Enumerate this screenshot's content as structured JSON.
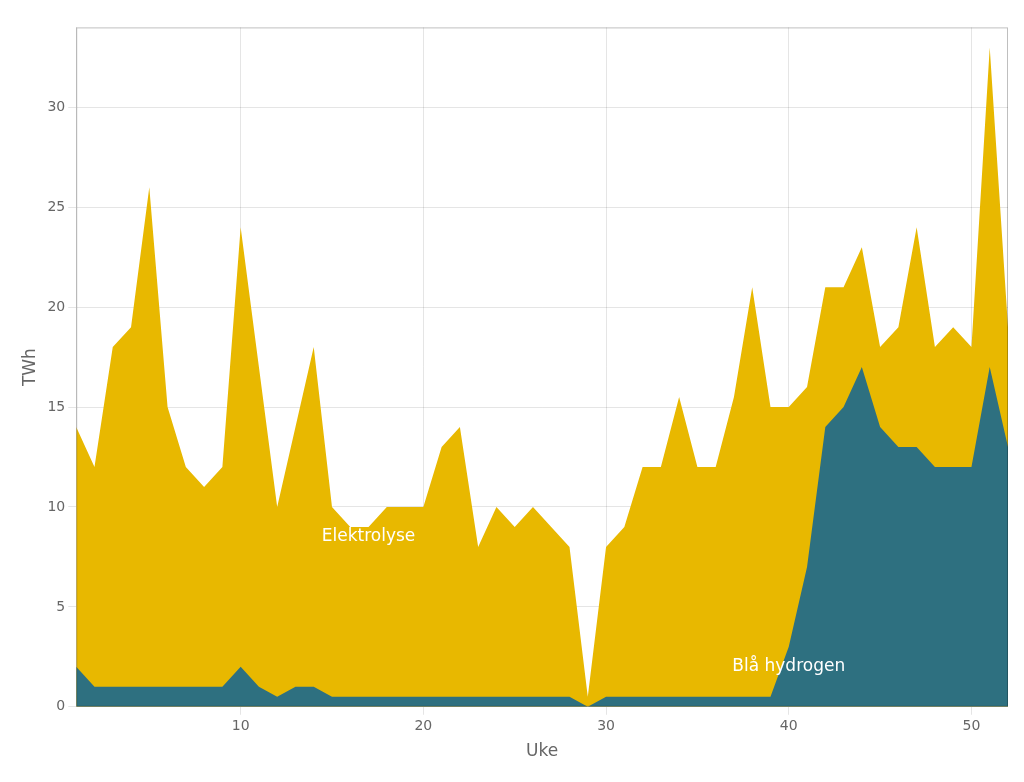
{
  "chart_data": {
    "type": "area",
    "xlabel": "Uke",
    "ylabel": "TWh",
    "x": [
      1,
      2,
      3,
      4,
      5,
      6,
      7,
      8,
      9,
      10,
      11,
      12,
      13,
      14,
      15,
      16,
      17,
      18,
      19,
      20,
      21,
      22,
      23,
      24,
      25,
      26,
      27,
      28,
      29,
      30,
      31,
      32,
      33,
      34,
      35,
      36,
      37,
      38,
      39,
      40,
      41,
      42,
      43,
      44,
      45,
      46,
      47,
      48,
      49,
      50,
      51,
      52
    ],
    "series": [
      {
        "color": "#E8B800",
        "values": [
          14,
          12,
          18,
          19,
          26,
          15,
          12,
          11,
          12,
          24,
          17,
          10,
          14,
          18,
          10,
          9,
          9,
          10,
          10,
          10,
          13,
          14,
          8,
          10,
          9,
          10,
          9,
          8,
          0.5,
          8,
          9,
          12,
          12,
          15.5,
          12,
          12,
          15.5,
          21,
          15,
          15,
          16,
          21,
          21,
          23,
          18,
          19,
          24,
          18,
          19,
          18,
          33,
          19
        ]
      },
      {
        "color": "#2E7080",
        "values": [
          2,
          1,
          1,
          1,
          1,
          1,
          1,
          1,
          1,
          2,
          1,
          0.5,
          1,
          1,
          0.5,
          0.5,
          0.5,
          0.5,
          0.5,
          0.5,
          0.5,
          0.5,
          0.5,
          0.5,
          0.5,
          0.5,
          0.5,
          0.5,
          0,
          0.5,
          0.5,
          0.5,
          0.5,
          0.5,
          0.5,
          0.5,
          0.5,
          0.5,
          0.5,
          3,
          7,
          14,
          15,
          17,
          14,
          13,
          13,
          12,
          12,
          12,
          17,
          13
        ]
      }
    ],
    "annotations": [
      {
        "text": "Elektrolyse",
        "x": 17,
        "y": 8.5
      },
      {
        "text": "Blå hydrogen",
        "x": 40,
        "y": 2.0
      }
    ],
    "xlim": [
      1,
      52
    ],
    "ylim": [
      0,
      34
    ],
    "xticks": [
      10,
      20,
      30,
      40,
      50
    ],
    "yticks": [
      0,
      5,
      10,
      15,
      20,
      25,
      30
    ],
    "grid": true
  }
}
